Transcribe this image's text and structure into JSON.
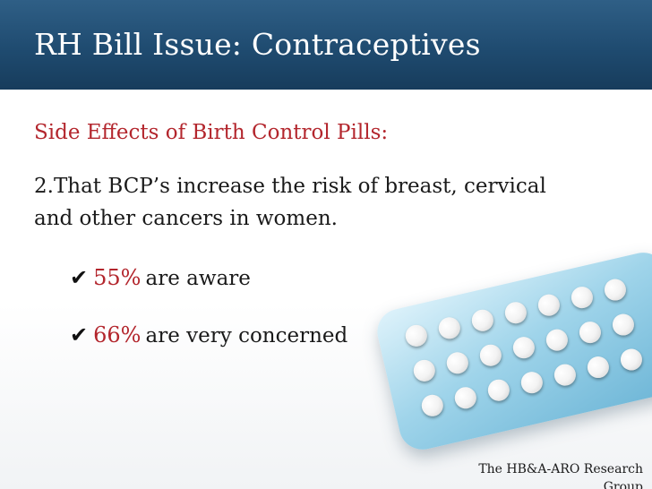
{
  "slide": {
    "title": "RH Bill Issue: Contraceptives",
    "subtitle": "Side Effects of Birth Control Pills:",
    "body": "2.That BCP’s increase the risk of breast, cervical and other cancers in women.",
    "bullets": [
      {
        "percent": "55%",
        "text": "are aware"
      },
      {
        "percent": "66%",
        "text": "are very concerned"
      }
    ],
    "footer": "The HB&A-ARO Research Group"
  },
  "colors": {
    "title_bar": "#1f4b70",
    "accent_red": "#b3262d",
    "pack_blue": "#9fd4ea"
  },
  "icons": {
    "bullet": "check-mark-icon",
    "image": "birth-control-pill-pack"
  }
}
